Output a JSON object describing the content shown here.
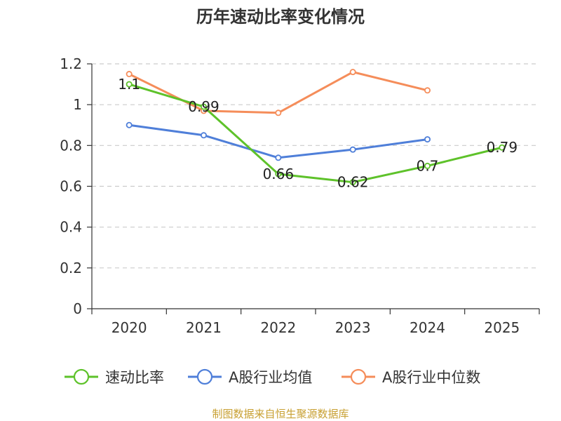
{
  "chart_data": {
    "type": "line",
    "title": "历年速动比率变化情况",
    "categories": [
      "2020",
      "2021",
      "2022",
      "2023",
      "2024",
      "2025"
    ],
    "ylim": [
      0,
      1.2
    ],
    "yticks": [
      "0",
      "0.2",
      "0.4",
      "0.6",
      "0.8",
      "1",
      "1.2"
    ],
    "grid": true,
    "legend_position": "bottom",
    "series": [
      {
        "name": "速动比率",
        "color": "#5ec22a",
        "values": [
          1.1,
          0.99,
          0.66,
          0.62,
          0.7,
          0.79
        ],
        "labels": [
          "1.1",
          "0.99",
          "0.66",
          "0.62",
          "0.7",
          "0.79"
        ]
      },
      {
        "name": "A股行业均值",
        "color": "#4f7fd9",
        "values": [
          0.9,
          0.85,
          0.74,
          0.78,
          0.83,
          null
        ]
      },
      {
        "name": "A股行业中位数",
        "color": "#f58d5a",
        "values": [
          1.15,
          0.97,
          0.96,
          1.16,
          1.07,
          null
        ]
      }
    ]
  },
  "source": "制图数据来自恒生聚源数据库"
}
